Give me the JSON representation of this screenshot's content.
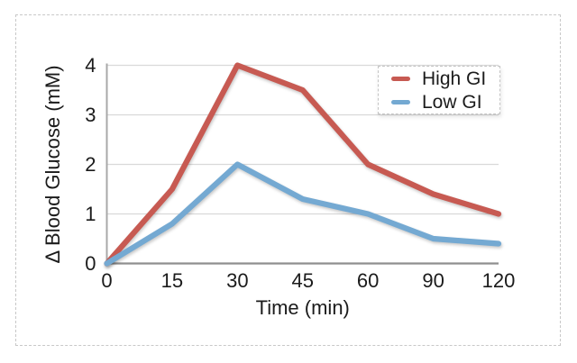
{
  "figure": {
    "background": "#ffffff",
    "border_color": "#c8c8c8"
  },
  "chart_data": {
    "type": "line",
    "title": "",
    "xlabel": "Time (min)",
    "ylabel": "Δ Blood Glucose (mM)",
    "categories": [
      "0",
      "15",
      "30",
      "45",
      "60",
      "90",
      "120"
    ],
    "x_spacing": "categorical-even",
    "yticks": [
      "0",
      "1",
      "2",
      "3",
      "4"
    ],
    "ylim": [
      0,
      4
    ],
    "grid": "horizontal",
    "gridline_color": "#d9d9d9",
    "axis_color": "#8f8f8f",
    "text_color": "#1b1b1b",
    "legend_position": "top-right",
    "series": [
      {
        "name": "High GI",
        "color": "#c75a52",
        "values": [
          0,
          1.5,
          4,
          3.5,
          2,
          1.4,
          1
        ]
      },
      {
        "name": "Low GI",
        "color": "#74a9d2",
        "values": [
          0,
          0.8,
          2,
          1.3,
          1,
          0.5,
          0.4
        ]
      }
    ]
  }
}
